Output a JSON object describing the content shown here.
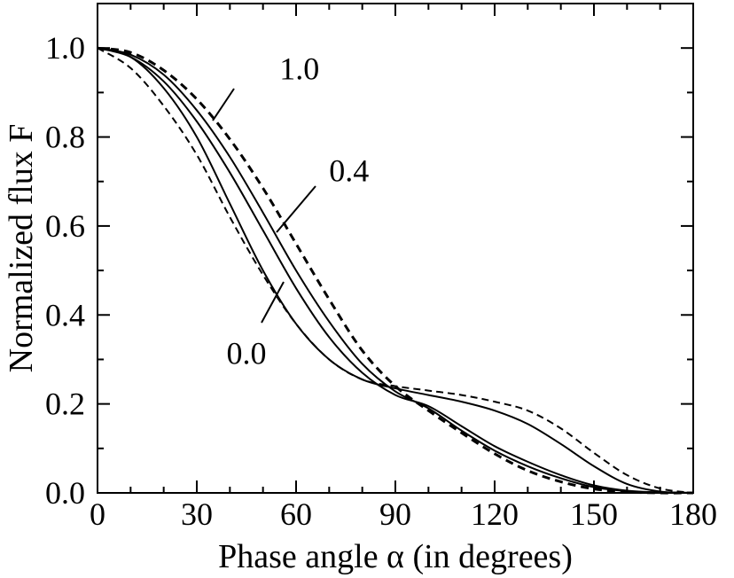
{
  "chart_data": {
    "type": "line",
    "title": "",
    "xlabel": "Phase angle α (in degrees)",
    "ylabel": "Normalized flux  F",
    "xlim": [
      0,
      180
    ],
    "ylim": [
      0,
      1.1
    ],
    "xticks": [
      "0",
      "30",
      "60",
      "90",
      "120",
      "150",
      "180"
    ],
    "yticks": [
      "0.0",
      "0.2",
      "0.4",
      "0.6",
      "0.8",
      "1.0"
    ],
    "grid": false,
    "legend": "none",
    "curve_labels": [
      {
        "text": "1.0",
        "x": 61,
        "y": 0.93
      },
      {
        "text": "0.4",
        "x": 76,
        "y": 0.7
      },
      {
        "text": "0.0",
        "x": 45,
        "y": 0.29
      }
    ],
    "series": [
      {
        "style": "solid",
        "width": 2,
        "x": [
          0,
          10,
          20,
          30,
          40,
          50,
          60,
          70,
          80,
          90,
          100,
          110,
          120,
          130,
          140,
          150,
          160,
          170,
          180
        ],
        "y": [
          1.0,
          0.98,
          0.91,
          0.8,
          0.65,
          0.5,
          0.38,
          0.3,
          0.255,
          0.235,
          0.22,
          0.205,
          0.185,
          0.155,
          0.11,
          0.06,
          0.02,
          0.003,
          0.0
        ]
      },
      {
        "style": "dashed",
        "width": 2,
        "x": [
          0,
          10,
          20,
          30,
          40,
          50,
          60,
          70,
          80,
          90,
          100,
          110,
          120,
          130,
          140,
          150,
          160,
          170,
          180
        ],
        "y": [
          1.0,
          0.955,
          0.87,
          0.76,
          0.62,
          0.49,
          0.38,
          0.3,
          0.255,
          0.24,
          0.23,
          0.22,
          0.205,
          0.185,
          0.145,
          0.09,
          0.04,
          0.01,
          0.0
        ]
      },
      {
        "style": "solid",
        "width": 2,
        "x": [
          0,
          10,
          20,
          30,
          40,
          50,
          60,
          70,
          80,
          90,
          100,
          110,
          120,
          130,
          140,
          150,
          160,
          170,
          180
        ],
        "y": [
          1.0,
          0.98,
          0.925,
          0.835,
          0.72,
          0.59,
          0.46,
          0.35,
          0.27,
          0.22,
          0.195,
          0.15,
          0.105,
          0.07,
          0.04,
          0.017,
          0.005,
          0.001,
          0.0
        ]
      },
      {
        "style": "solid",
        "width": 2,
        "x": [
          0,
          10,
          20,
          30,
          40,
          50,
          60,
          70,
          80,
          90,
          100,
          110,
          120,
          130,
          140,
          150,
          160,
          170,
          180
        ],
        "y": [
          1.0,
          0.985,
          0.94,
          0.86,
          0.755,
          0.63,
          0.5,
          0.385,
          0.29,
          0.228,
          0.19,
          0.14,
          0.095,
          0.06,
          0.033,
          0.013,
          0.004,
          0.001,
          0.0
        ]
      },
      {
        "style": "dashed",
        "width": 3,
        "x": [
          0,
          10,
          20,
          30,
          40,
          50,
          60,
          70,
          80,
          90,
          100,
          110,
          120,
          130,
          140,
          150,
          160,
          170,
          180
        ],
        "y": [
          1.0,
          0.99,
          0.95,
          0.885,
          0.795,
          0.685,
          0.56,
          0.435,
          0.32,
          0.24,
          0.185,
          0.135,
          0.088,
          0.05,
          0.025,
          0.009,
          0.002,
          0.0,
          0.0
        ]
      }
    ],
    "colors": {
      "ink": "#000000",
      "background": "#ffffff"
    }
  }
}
